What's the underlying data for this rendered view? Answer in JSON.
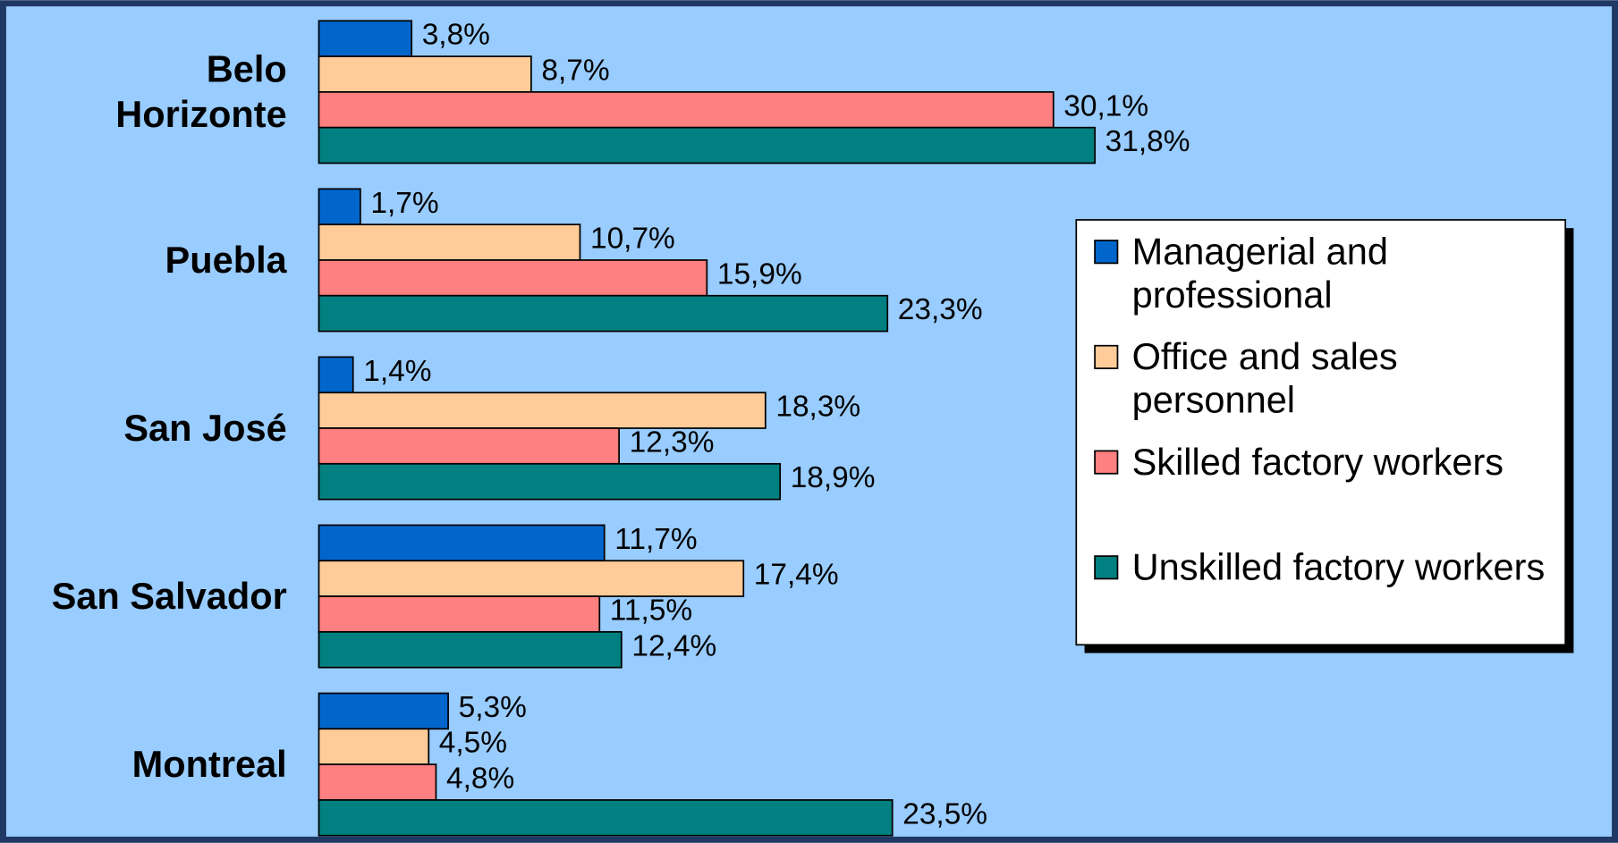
{
  "chart_data": {
    "type": "bar",
    "orientation": "horizontal",
    "categories": [
      "Belo Horizonte",
      "Puebla",
      "San José",
      "San Salvador",
      "Montreal"
    ],
    "series": [
      {
        "name": "Managerial and professional",
        "color": "#0066cc",
        "values": [
          3.8,
          1.7,
          1.4,
          11.7,
          5.3
        ],
        "value_labels": [
          "3,8%",
          "1,7%",
          "1,4%",
          "11,7%",
          "5,3%"
        ]
      },
      {
        "name": "Office and sales personnel",
        "color": "#ffcc99",
        "values": [
          8.7,
          10.7,
          18.3,
          17.4,
          4.5
        ],
        "value_labels": [
          "8,7%",
          "10,7%",
          "18,3%",
          "17,4%",
          "4,5%"
        ]
      },
      {
        "name": "Skilled factory workers",
        "color": "#ff8080",
        "values": [
          30.1,
          15.9,
          12.3,
          11.5,
          4.8
        ],
        "value_labels": [
          "30,1%",
          "15,9%",
          "12,3%",
          "11,5%",
          "4,8%"
        ]
      },
      {
        "name": "Unskilled factory workers",
        "color": "#008080",
        "values": [
          31.8,
          23.3,
          18.9,
          12.4,
          23.5
        ],
        "value_labels": [
          "31,8%",
          "23,3%",
          "18,9%",
          "12,4%",
          "23,5%"
        ]
      }
    ],
    "legend": "right"
  }
}
